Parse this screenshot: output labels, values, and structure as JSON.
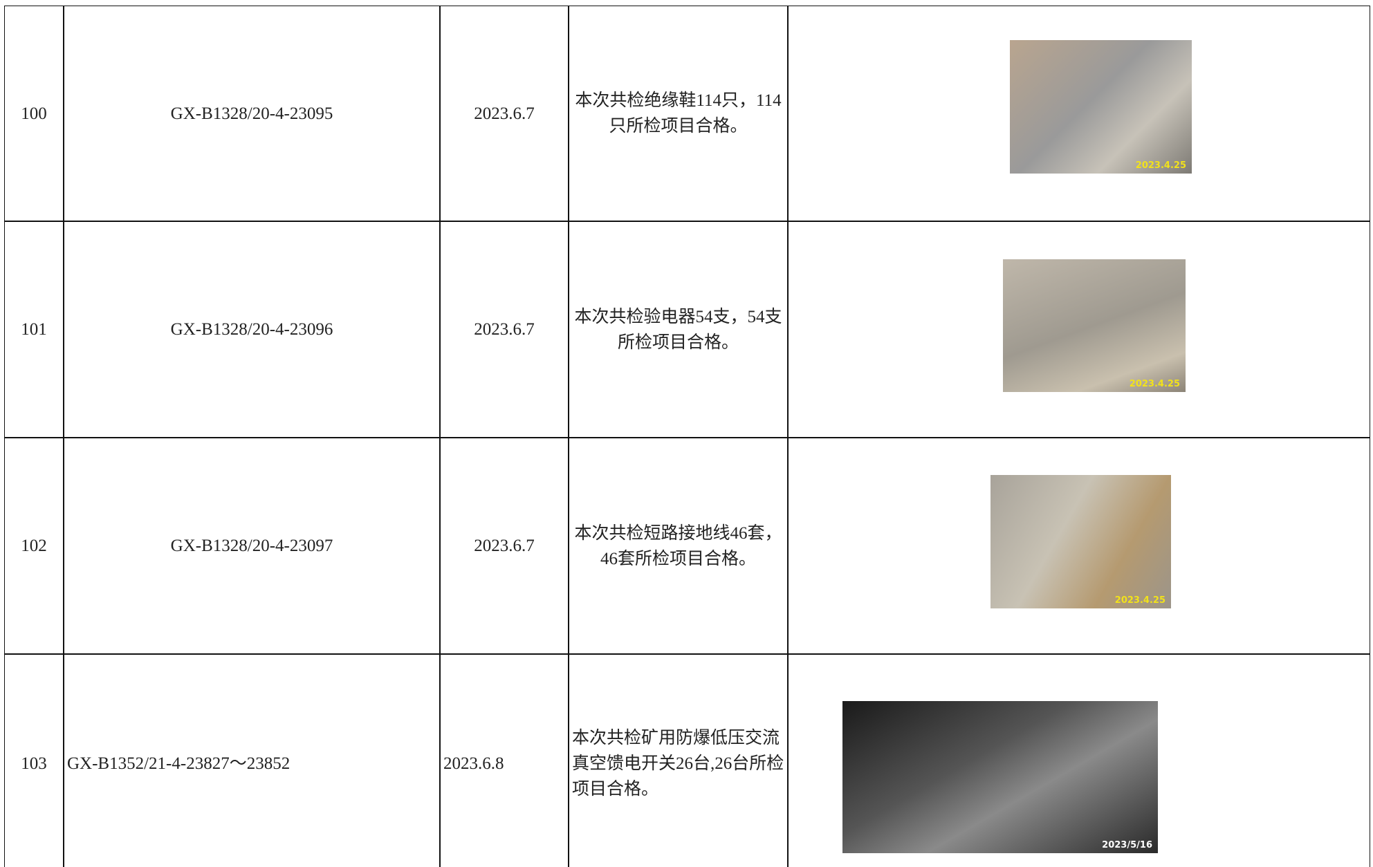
{
  "table": {
    "rows": [
      {
        "no": "100",
        "code": "GX-B1328/20-4-23095",
        "date": "2023.6.7",
        "description": "本次共检绝缘鞋114只，114只所检项目合格。",
        "photo_stamp": "2023.4.25"
      },
      {
        "no": "101",
        "code": "GX-B1328/20-4-23096",
        "date": "2023.6.7",
        "description": "本次共检验电器54支，54支所检项目合格。",
        "photo_stamp": "2023.4.25"
      },
      {
        "no": "102",
        "code": "GX-B1328/20-4-23097",
        "date": "2023.6.7",
        "description": "本次共检短路接地线46套，46套所检项目合格。",
        "photo_stamp": "2023.4.25"
      },
      {
        "no": "103",
        "code": "GX-B1352/21-4-23827～23852",
        "date": "2023.6.8",
        "description": "本次共检矿用防爆低压交流真空馈电开关26台,26台所检项目合格。",
        "photo_stamp": "2023/5/16"
      }
    ]
  }
}
